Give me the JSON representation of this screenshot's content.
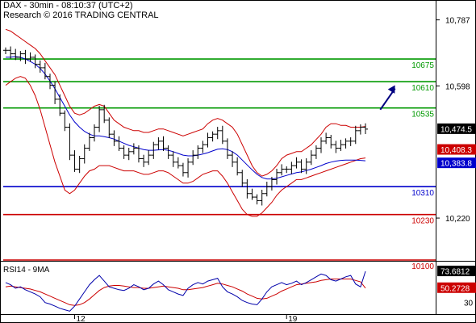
{
  "header": {
    "line1": "DAX - 30min - 08:10:37 (UTC+2)",
    "line2": "Research © 2016 TRADING CENTRAL"
  },
  "colors": {
    "price": "#000000",
    "bollinger": "#cc0000",
    "moving_average": "#0000cc",
    "support_line": "#0000cc",
    "resistance_line": "#009900",
    "red_level": "#cc0000",
    "arrow": "#000080",
    "rsi": "#0000aa",
    "rsi_ma": "#cc0000",
    "tag_dark": "#000000",
    "tag_red": "#cc0000",
    "tag_blue": "#0000cc"
  },
  "chart_data": [
    {
      "type": "candlestick",
      "panel": "price",
      "ylim": [
        10100,
        10830
      ],
      "y_ticks": [
        10787,
        10598,
        10220
      ],
      "x_ticks": [
        {
          "label": "12",
          "bar": 14
        },
        {
          "label": "19",
          "bar": 57
        }
      ],
      "levels": [
        {
          "label": "10675",
          "value": 10675,
          "kind": "resistance"
        },
        {
          "label": "10610",
          "value": 10610,
          "kind": "resistance"
        },
        {
          "label": "10535",
          "value": 10535,
          "kind": "resistance"
        },
        {
          "label": "10310",
          "value": 10310,
          "kind": "support"
        },
        {
          "label": "10230",
          "value": 10230,
          "kind": "stop"
        },
        {
          "label": "10100",
          "value": 10100,
          "kind": "stop"
        }
      ],
      "tags": [
        {
          "label": "10,474.5",
          "value": 10474.5,
          "style": "dark"
        },
        {
          "label": "10,408.3",
          "value": 10408.3,
          "style": "red"
        },
        {
          "label": "10,383.8",
          "value": 10383.8,
          "style": "blue"
        }
      ],
      "closes": [
        10700,
        10690,
        10680,
        10690,
        10675,
        10680,
        10660,
        10650,
        10625,
        10600,
        10560,
        10520,
        10480,
        10400,
        10360,
        10390,
        10420,
        10450,
        10480,
        10530,
        10500,
        10460,
        10440,
        10420,
        10400,
        10410,
        10420,
        10390,
        10380,
        10400,
        10430,
        10440,
        10420,
        10400,
        10380,
        10370,
        10350,
        10380,
        10400,
        10420,
        10430,
        10450,
        10460,
        10470,
        10440,
        10400,
        10380,
        10350,
        10320,
        10290,
        10280,
        10270,
        10290,
        10310,
        10330,
        10350,
        10360,
        10360,
        10370,
        10380,
        10360,
        10380,
        10400,
        10420,
        10440,
        10450,
        10430,
        10420,
        10430,
        10440,
        10440,
        10470,
        10480,
        10474.5
      ],
      "bollinger_upper": [
        10760,
        10755,
        10745,
        10735,
        10725,
        10715,
        10705,
        10690,
        10670,
        10650,
        10630,
        10600,
        10570,
        10540,
        10520,
        10515,
        10520,
        10530,
        10540,
        10545,
        10540,
        10520,
        10500,
        10490,
        10480,
        10475,
        10470,
        10470,
        10465,
        10465,
        10470,
        10475,
        10475,
        10470,
        10465,
        10460,
        10455,
        10460,
        10465,
        10470,
        10475,
        10490,
        10500,
        10505,
        10500,
        10490,
        10480,
        10460,
        10430,
        10400,
        10370,
        10350,
        10340,
        10345,
        10355,
        10370,
        10390,
        10400,
        10405,
        10410,
        10410,
        10420,
        10430,
        10445,
        10460,
        10480,
        10490,
        10490,
        10485,
        10485,
        10480,
        10480,
        10480,
        10482
      ],
      "bollinger_lower": [
        10600,
        10610,
        10620,
        10625,
        10620,
        10600,
        10570,
        10530,
        10480,
        10430,
        10380,
        10340,
        10300,
        10290,
        10300,
        10320,
        10340,
        10355,
        10360,
        10370,
        10370,
        10370,
        10365,
        10360,
        10355,
        10355,
        10355,
        10350,
        10345,
        10345,
        10350,
        10355,
        10355,
        10350,
        10340,
        10330,
        10320,
        10320,
        10325,
        10335,
        10345,
        10350,
        10355,
        10355,
        10340,
        10320,
        10295,
        10270,
        10245,
        10230,
        10225,
        10225,
        10235,
        10250,
        10265,
        10285,
        10300,
        10310,
        10320,
        10330,
        10330,
        10335,
        10340,
        10345,
        10350,
        10355,
        10360,
        10365,
        10370,
        10375,
        10380,
        10385,
        10390,
        10392
      ],
      "moving_average": [
        10680,
        10680,
        10682,
        10680,
        10675,
        10668,
        10660,
        10648,
        10632,
        10612,
        10590,
        10565,
        10540,
        10515,
        10495,
        10480,
        10468,
        10460,
        10455,
        10455,
        10453,
        10450,
        10446,
        10440,
        10434,
        10428,
        10424,
        10420,
        10416,
        10414,
        10414,
        10415,
        10416,
        10414,
        10410,
        10405,
        10400,
        10398,
        10398,
        10400,
        10403,
        10407,
        10412,
        10417,
        10418,
        10416,
        10410,
        10400,
        10386,
        10372,
        10358,
        10345,
        10336,
        10332,
        10332,
        10334,
        10338,
        10342,
        10346,
        10350,
        10352,
        10356,
        10360,
        10365,
        10370,
        10376,
        10380,
        10383,
        10385,
        10386,
        10386,
        10386,
        10385,
        10384
      ],
      "forecast_arrow": {
        "start_bar": 76,
        "start_value": 10530,
        "end_bar": 79,
        "end_value": 10600
      }
    },
    {
      "type": "line",
      "panel": "rsi",
      "title": "RSI14 - 9MA",
      "ylim": [
        15,
        85
      ],
      "y_ticks": [
        30
      ],
      "tags": [
        {
          "label": "73.6812",
          "value": 73.6812,
          "style": "dark"
        },
        {
          "label": "50.2728",
          "value": 50.2728,
          "style": "red"
        }
      ],
      "series": [
        {
          "name": "RSI14",
          "values": [
            58,
            55,
            50,
            52,
            48,
            45,
            42,
            38,
            30,
            28,
            25,
            22,
            20,
            18,
            25,
            35,
            45,
            55,
            62,
            68,
            60,
            52,
            50,
            48,
            47,
            50,
            55,
            52,
            48,
            50,
            56,
            60,
            55,
            48,
            45,
            42,
            40,
            50,
            55,
            58,
            56,
            60,
            62,
            64,
            52,
            45,
            42,
            38,
            33,
            30,
            28,
            27,
            35,
            45,
            52,
            55,
            58,
            55,
            57,
            60,
            55,
            58,
            62,
            66,
            70,
            68,
            62,
            60,
            63,
            66,
            68,
            56,
            52,
            73.68
          ]
        },
        {
          "name": "9MA",
          "values": [
            52,
            53,
            52,
            51,
            50,
            49,
            47,
            45,
            42,
            39,
            36,
            33,
            30,
            27,
            26,
            27,
            30,
            35,
            41,
            47,
            51,
            53,
            54,
            54,
            53,
            52,
            51,
            51,
            50,
            50,
            51,
            52,
            53,
            52,
            51,
            50,
            48,
            48,
            49,
            50,
            51,
            53,
            55,
            57,
            56,
            54,
            52,
            49,
            46,
            42,
            39,
            36,
            35,
            36,
            39,
            42,
            46,
            49,
            52,
            55,
            56,
            57,
            58,
            59,
            61,
            62,
            63,
            63,
            63,
            63,
            63,
            61,
            59,
            50.27
          ]
        }
      ]
    }
  ]
}
